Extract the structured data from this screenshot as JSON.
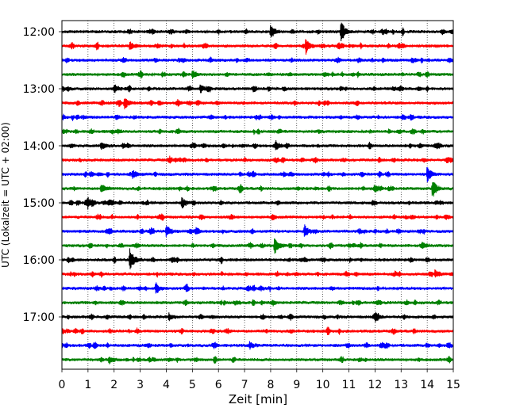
{
  "chart_data": {
    "type": "line",
    "title": "",
    "xlabel": "Zeit  [min]",
    "ylabel": "UTC (Lokalzeit = UTC + 02:00)",
    "xlim": [
      0,
      15
    ],
    "x_ticks": [
      "0",
      "1",
      "2",
      "3",
      "4",
      "5",
      "6",
      "7",
      "8",
      "9",
      "10",
      "11",
      "12",
      "13",
      "14",
      "15"
    ],
    "y_ticks": [
      "12:00",
      "13:00",
      "14:00",
      "15:00",
      "16:00",
      "17:00"
    ],
    "grid": "vertical dotted at each minute",
    "trace_minutes": 15,
    "trace_start": "12:00",
    "trace_end": "17:45",
    "trace_colors": [
      "#000000",
      "#ff0000",
      "#0000ff",
      "#008000"
    ],
    "events": [
      {
        "trace": 0,
        "minute": 8.0,
        "amp": 0.45
      },
      {
        "trace": 0,
        "minute": 10.7,
        "amp": 0.75
      },
      {
        "trace": 1,
        "minute": 9.35,
        "amp": 0.45
      },
      {
        "trace": 1,
        "minute": 2.6,
        "amp": 0.25
      },
      {
        "trace": 3,
        "minute": 5.0,
        "amp": 0.3
      },
      {
        "trace": 4,
        "minute": 2.0,
        "amp": 0.3
      },
      {
        "trace": 4,
        "minute": 5.3,
        "amp": 0.25
      },
      {
        "trace": 5,
        "minute": 2.4,
        "amp": 0.35
      },
      {
        "trace": 8,
        "minute": 8.2,
        "amp": 0.3
      },
      {
        "trace": 8,
        "minute": 1.5,
        "amp": 0.25
      },
      {
        "trace": 10,
        "minute": 2.7,
        "amp": 0.3
      },
      {
        "trace": 10,
        "minute": 14.0,
        "amp": 0.5
      },
      {
        "trace": 11,
        "minute": 1.5,
        "amp": 0.3
      },
      {
        "trace": 11,
        "minute": 14.2,
        "amp": 0.55
      },
      {
        "trace": 12,
        "minute": 4.6,
        "amp": 0.35
      },
      {
        "trace": 12,
        "minute": 1.0,
        "amp": 0.25
      },
      {
        "trace": 14,
        "minute": 4.0,
        "amp": 0.4
      },
      {
        "trace": 14,
        "minute": 9.3,
        "amp": 0.4
      },
      {
        "trace": 15,
        "minute": 8.15,
        "amp": 0.6
      },
      {
        "trace": 16,
        "minute": 2.6,
        "amp": 0.8
      },
      {
        "trace": 17,
        "minute": 14.3,
        "amp": 0.25
      },
      {
        "trace": 18,
        "minute": 3.6,
        "amp": 0.25
      },
      {
        "trace": 20,
        "minute": 4.1,
        "amp": 0.2
      },
      {
        "trace": 22,
        "minute": 7.2,
        "amp": 0.2
      },
      {
        "trace": 23,
        "minute": 1.8,
        "amp": 0.25
      }
    ]
  }
}
